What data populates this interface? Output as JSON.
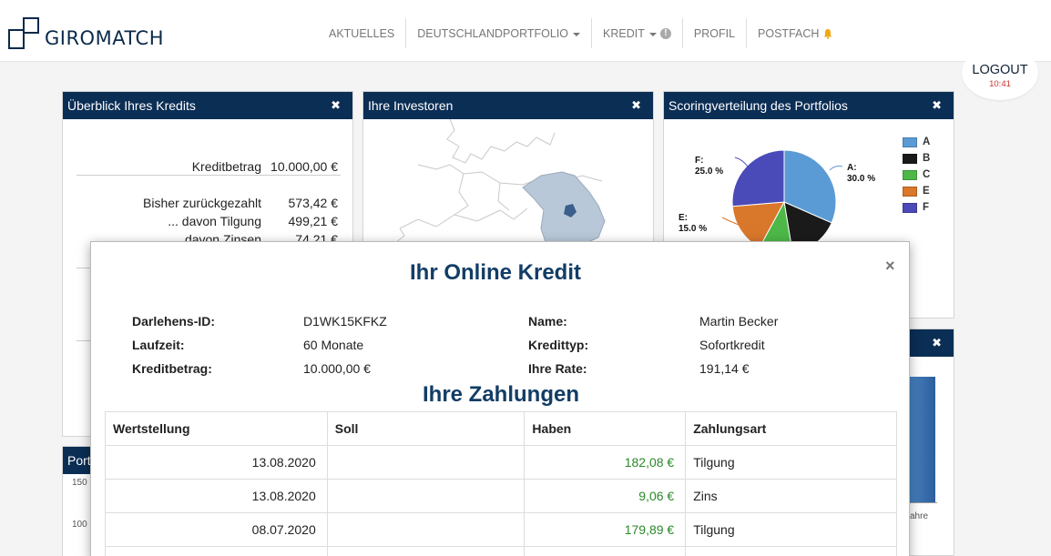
{
  "brand": {
    "logo_text_a": "GIRO",
    "logo_text_b": "MATCH"
  },
  "nav": {
    "items": [
      "AKTUELLES",
      "DEUTSCHLANDPORTFOLIO",
      "KREDIT",
      "PROFIL",
      "POSTFACH"
    ]
  },
  "logout": {
    "label": "LOGOUT",
    "time": "10:41"
  },
  "panels": {
    "overview": {
      "title": "Überblick Ihres Kredits",
      "rows": [
        {
          "label": "Kreditbetrag",
          "value": "10.000,00 €"
        },
        {
          "label": "Bisher zurückgezahlt",
          "value": "573,42 €"
        },
        {
          "label": "... davon Tilgung",
          "value": "499,21 €"
        },
        {
          "label": "davon Zinsen",
          "value": "74,21 €"
        }
      ]
    },
    "investors": {
      "title": "Ihre Investoren"
    },
    "scoring": {
      "title": "Scoringverteilung des Portfolios",
      "legend": [
        "A",
        "B",
        "C",
        "E",
        "F"
      ],
      "labels": {
        "a": {
          "name": "A:",
          "value": "30.0 %"
        },
        "e": {
          "name": "E:",
          "value": "15.0 %"
        },
        "f": {
          "name": "F:",
          "value": "25.0 %"
        }
      }
    },
    "portfolio": {
      "title": "Port",
      "ticks": [
        "150",
        "100"
      ]
    },
    "right_lower": {
      "label": "ahre"
    }
  },
  "chart_data": {
    "type": "pie",
    "categories": [
      "A",
      "B",
      "C",
      "E",
      "F"
    ],
    "values": [
      30.0,
      15.0,
      10.0,
      15.0,
      25.0
    ],
    "colors": [
      "#5b9bd5",
      "#1a1a1a",
      "#4db848",
      "#d9772b",
      "#4a4ab8"
    ],
    "legend_position": "right"
  },
  "modal": {
    "title": "Ihr Online Kredit",
    "left": [
      {
        "label": "Darlehens-ID:",
        "value": "D1WK15KFKZ"
      },
      {
        "label": "Laufzeit:",
        "value": "60 Monate"
      },
      {
        "label": "Kreditbetrag:",
        "value": "10.000,00 €"
      }
    ],
    "right": [
      {
        "label": "Name:",
        "value": "Martin Becker"
      },
      {
        "label": "Kredittyp:",
        "value": "Sofortkredit"
      },
      {
        "label": "Ihre Rate:",
        "value": "191,14 €"
      }
    ],
    "payments_title": "Ihre Zahlungen",
    "columns": [
      "Wertstellung",
      "Soll",
      "Haben",
      "Zahlungsart"
    ],
    "rows": [
      {
        "date": "13.08.2020",
        "soll": "",
        "haben": "182,08 €",
        "type": "Tilgung"
      },
      {
        "date": "13.08.2020",
        "soll": "",
        "haben": "9,06 €",
        "type": "Zins"
      },
      {
        "date": "08.07.2020",
        "soll": "",
        "haben": "179,89 €",
        "type": "Tilgung"
      }
    ]
  }
}
